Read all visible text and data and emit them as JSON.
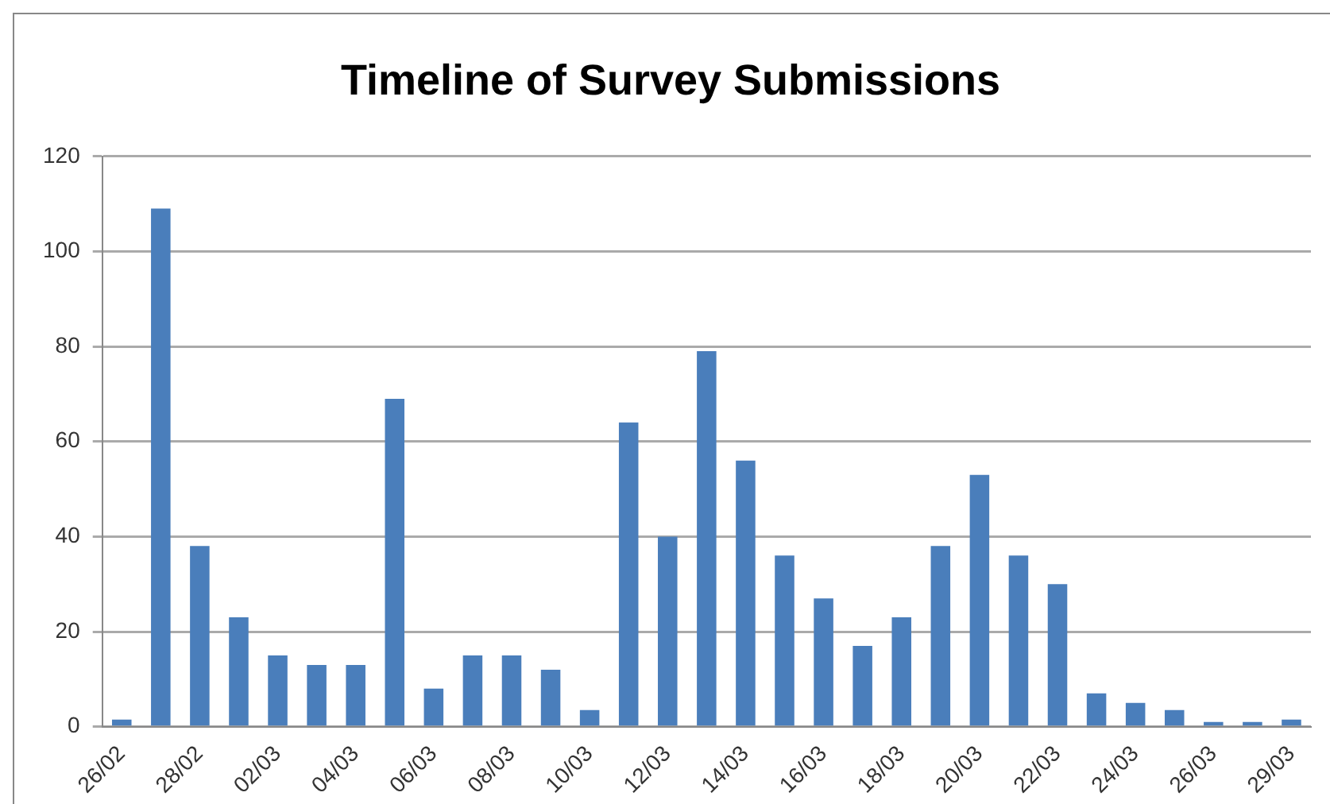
{
  "chart_data": {
    "type": "bar",
    "title": "Timeline of Survey Submissions",
    "categories": [
      "26/02",
      null,
      "28/02",
      null,
      "02/03",
      null,
      "04/03",
      null,
      "06/03",
      null,
      "08/03",
      null,
      "10/03",
      null,
      "12/03",
      null,
      "14/03",
      null,
      "16/03",
      null,
      "18/03",
      null,
      "20/03",
      null,
      "22/03",
      null,
      "24/03",
      null,
      "26/03",
      null,
      "29/03"
    ],
    "values": [
      1.5,
      109,
      38,
      23,
      15,
      13,
      13,
      69,
      8,
      15,
      15,
      12,
      3.5,
      64,
      40,
      79,
      56,
      36,
      27,
      17,
      23,
      38,
      53,
      36,
      30,
      7,
      5,
      3.5,
      1,
      1,
      1.5
    ],
    "color": "#4a7ebb",
    "ylim": [
      0,
      120
    ],
    "yticks": [
      0,
      20,
      40,
      60,
      80,
      100,
      120
    ],
    "grid": "y",
    "legend": false
  }
}
